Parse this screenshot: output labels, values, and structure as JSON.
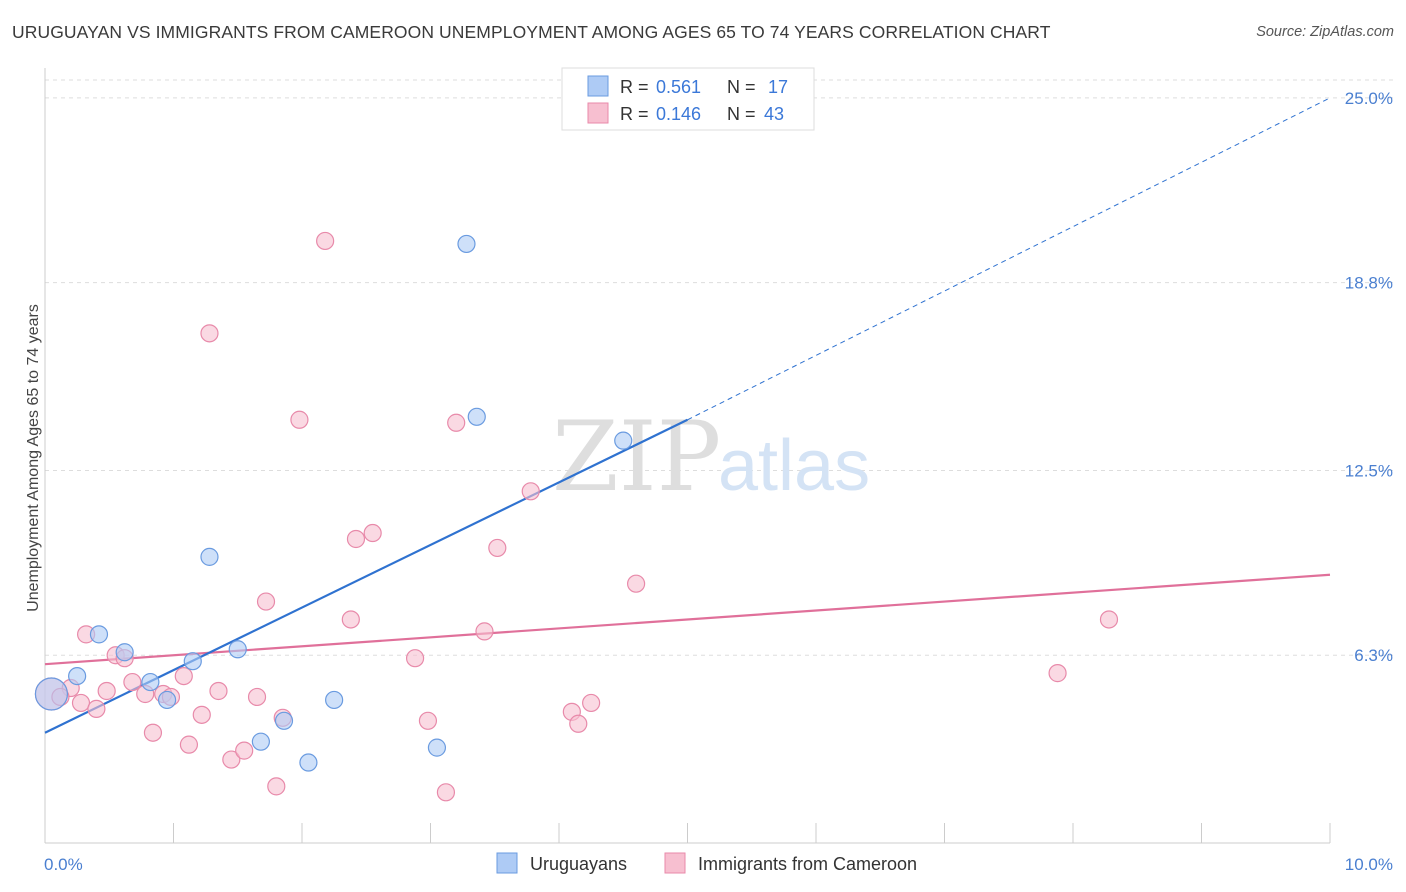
{
  "title": "URUGUAYAN VS IMMIGRANTS FROM CAMEROON UNEMPLOYMENT AMONG AGES 65 TO 74 YEARS CORRELATION CHART",
  "source": "Source: ZipAtlas.com",
  "watermark": {
    "zip": "ZIP",
    "atlas": "atlas"
  },
  "colors": {
    "blue_fill": "#aecbf5",
    "blue_stroke": "#6a9be0",
    "blue_line": "#2f72d0",
    "pink_fill": "#f7bfd0",
    "pink_stroke": "#e88aaa",
    "pink_line": "#e0709a",
    "tick_label": "#4a7fd0",
    "grid": "#dddddd"
  },
  "legend": {
    "r_label": "R =",
    "n_label": "N =",
    "items": [
      {
        "r": "0.561",
        "n": "17"
      },
      {
        "r": "0.146",
        "n": "43"
      }
    ]
  },
  "chart_data": {
    "type": "scatter",
    "title": "URUGUAYAN VS IMMIGRANTS FROM CAMEROON UNEMPLOYMENT AMONG AGES 65 TO 74 YEARS CORRELATION CHART",
    "xlabel": "",
    "ylabel": "Unemployment Among Ages 65 to 74 years",
    "xlim": [
      0,
      10
    ],
    "ylim": [
      0,
      25.6
    ],
    "x_tick_labels": [
      "0.0%",
      "10.0%"
    ],
    "y_ticks": [
      6.3,
      12.5,
      18.8,
      25.0
    ],
    "y_tick_labels": [
      "6.3%",
      "12.5%",
      "18.8%",
      "25.0%"
    ],
    "series": [
      {
        "name": "Uruguayans",
        "color": "#aecbf5",
        "points": [
          {
            "x": 0.05,
            "y": 5.0,
            "big": true
          },
          {
            "x": 0.25,
            "y": 5.6
          },
          {
            "x": 0.42,
            "y": 7.0
          },
          {
            "x": 0.62,
            "y": 6.4
          },
          {
            "x": 0.82,
            "y": 5.4
          },
          {
            "x": 0.95,
            "y": 4.8
          },
          {
            "x": 1.15,
            "y": 6.1
          },
          {
            "x": 1.28,
            "y": 9.6
          },
          {
            "x": 1.5,
            "y": 6.5
          },
          {
            "x": 1.68,
            "y": 3.4
          },
          {
            "x": 1.86,
            "y": 4.1
          },
          {
            "x": 2.05,
            "y": 2.7
          },
          {
            "x": 2.25,
            "y": 4.8
          },
          {
            "x": 3.05,
            "y": 3.2
          },
          {
            "x": 3.28,
            "y": 20.1
          },
          {
            "x": 3.36,
            "y": 14.3
          },
          {
            "x": 4.5,
            "y": 13.5
          }
        ],
        "trend": {
          "x0": 0.0,
          "y0": 3.7,
          "x1": 5.0,
          "y1": 14.2,
          "dashed_to_x": 10.0,
          "dashed_to_y": 25.0
        },
        "r": 0.561,
        "n": 17
      },
      {
        "name": "Immigrants from Cameroon",
        "color": "#f7bfd0",
        "points": [
          {
            "x": 0.05,
            "y": 5.0,
            "big": true
          },
          {
            "x": 0.2,
            "y": 5.2
          },
          {
            "x": 0.28,
            "y": 4.7
          },
          {
            "x": 0.32,
            "y": 7.0
          },
          {
            "x": 0.4,
            "y": 4.5
          },
          {
            "x": 0.48,
            "y": 5.1
          },
          {
            "x": 0.55,
            "y": 6.3
          },
          {
            "x": 0.62,
            "y": 6.2
          },
          {
            "x": 0.68,
            "y": 5.4
          },
          {
            "x": 0.78,
            "y": 5.0
          },
          {
            "x": 0.84,
            "y": 3.7
          },
          {
            "x": 0.92,
            "y": 5.0
          },
          {
            "x": 0.98,
            "y": 4.9
          },
          {
            "x": 1.08,
            "y": 5.6
          },
          {
            "x": 1.12,
            "y": 3.3
          },
          {
            "x": 1.22,
            "y": 4.3
          },
          {
            "x": 1.28,
            "y": 17.1
          },
          {
            "x": 1.35,
            "y": 5.1
          },
          {
            "x": 1.45,
            "y": 2.8
          },
          {
            "x": 1.55,
            "y": 3.1
          },
          {
            "x": 1.65,
            "y": 4.9
          },
          {
            "x": 1.72,
            "y": 8.1
          },
          {
            "x": 1.8,
            "y": 1.9
          },
          {
            "x": 1.85,
            "y": 4.2
          },
          {
            "x": 1.98,
            "y": 14.2
          },
          {
            "x": 2.18,
            "y": 20.2
          },
          {
            "x": 2.38,
            "y": 7.5
          },
          {
            "x": 2.42,
            "y": 10.2
          },
          {
            "x": 2.55,
            "y": 10.4
          },
          {
            "x": 2.88,
            "y": 6.2
          },
          {
            "x": 2.98,
            "y": 4.1
          },
          {
            "x": 3.12,
            "y": 1.7
          },
          {
            "x": 3.2,
            "y": 14.1
          },
          {
            "x": 3.42,
            "y": 7.1
          },
          {
            "x": 3.52,
            "y": 9.9
          },
          {
            "x": 3.78,
            "y": 11.8
          },
          {
            "x": 4.1,
            "y": 4.4
          },
          {
            "x": 4.15,
            "y": 4.0
          },
          {
            "x": 4.25,
            "y": 4.7
          },
          {
            "x": 4.6,
            "y": 8.7
          },
          {
            "x": 7.88,
            "y": 5.7
          },
          {
            "x": 8.28,
            "y": 7.5
          },
          {
            "x": 0.12,
            "y": 4.9
          }
        ],
        "trend": {
          "x0": 0.0,
          "y0": 6.0,
          "x1": 10.0,
          "y1": 9.0
        },
        "r": 0.146,
        "n": 43
      }
    ],
    "legend_labels": [
      "Uruguayans",
      "Immigrants from Cameroon"
    ]
  }
}
